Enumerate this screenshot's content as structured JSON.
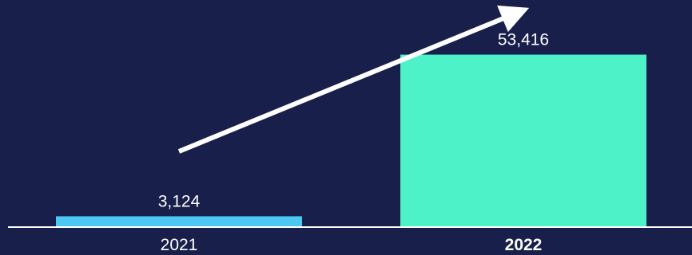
{
  "chart_data": {
    "type": "bar",
    "categories": [
      "2021",
      "2022"
    ],
    "values": [
      3124,
      53416
    ],
    "value_labels": [
      "3,124",
      "53,416"
    ],
    "highlighted_category": "2022",
    "ylim": [
      0,
      60000
    ],
    "grid": false,
    "title": "",
    "xlabel": "",
    "ylabel": "",
    "colors": {
      "background": "#181f4a",
      "bars": [
        "#4cc8f2",
        "#4df2c8"
      ],
      "baseline": "#ffffff",
      "text": "#ffffff",
      "arrow": "#ffffff"
    },
    "annotations": [
      {
        "type": "trend-arrow",
        "direction": "up",
        "from": "2021",
        "to": "2022"
      }
    ]
  }
}
